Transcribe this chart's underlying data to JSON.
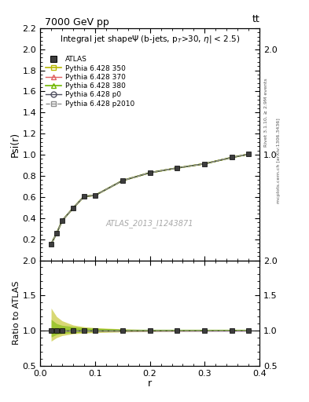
{
  "title_left": "7000 GeV pp",
  "title_right": "tt",
  "plot_title": "Integral jet shapeΨ (b-jets, p_{T}>30, |η| < 2.5)",
  "watermark": "ATLAS_2013_I1243871",
  "right_label_top": "Rivet 3.1.10, ≥ 2.9M events",
  "right_label_bot": "mcplots.cern.ch [arXiv:1306.3436]",
  "r_values": [
    0.02,
    0.03,
    0.04,
    0.06,
    0.08,
    0.1,
    0.15,
    0.2,
    0.25,
    0.3,
    0.35,
    0.38
  ],
  "atlas_psi": [
    0.155,
    0.255,
    0.375,
    0.495,
    0.605,
    0.615,
    0.755,
    0.83,
    0.875,
    0.915,
    0.975,
    1.005
  ],
  "py350_psi": [
    0.155,
    0.255,
    0.375,
    0.495,
    0.605,
    0.615,
    0.755,
    0.83,
    0.875,
    0.915,
    0.975,
    1.005
  ],
  "py370_psi": [
    0.155,
    0.255,
    0.375,
    0.495,
    0.605,
    0.615,
    0.755,
    0.83,
    0.875,
    0.915,
    0.975,
    1.005
  ],
  "py380_psi": [
    0.155,
    0.255,
    0.375,
    0.495,
    0.605,
    0.615,
    0.755,
    0.83,
    0.875,
    0.915,
    0.975,
    1.005
  ],
  "py_p0_psi": [
    0.155,
    0.255,
    0.375,
    0.495,
    0.605,
    0.615,
    0.755,
    0.83,
    0.875,
    0.915,
    0.975,
    1.005
  ],
  "py_p2010_psi": [
    0.155,
    0.255,
    0.375,
    0.495,
    0.605,
    0.615,
    0.755,
    0.83,
    0.875,
    0.915,
    0.975,
    1.005
  ],
  "ratio_all": [
    1.0,
    1.0,
    1.0,
    1.0,
    1.0,
    1.0,
    1.0,
    1.0,
    1.0,
    1.0,
    1.0,
    1.0
  ],
  "band_350_lo": [
    0.85,
    0.9,
    0.93,
    0.955,
    0.965,
    0.972,
    0.982,
    0.988,
    0.991,
    0.993,
    0.997,
    0.998
  ],
  "band_350_hi": [
    1.32,
    1.2,
    1.14,
    1.08,
    1.055,
    1.042,
    1.025,
    1.015,
    1.012,
    1.008,
    1.004,
    1.003
  ],
  "band_380_lo": [
    0.91,
    0.945,
    0.96,
    0.97,
    0.978,
    0.983,
    0.99,
    0.993,
    0.994,
    0.996,
    0.998,
    0.999
  ],
  "band_380_hi": [
    1.16,
    1.1,
    1.075,
    1.058,
    1.042,
    1.035,
    1.02,
    1.012,
    1.01,
    1.007,
    1.003,
    1.002
  ],
  "color_atlas": "#3d3d3d",
  "color_350": "#b8b800",
  "color_370": "#e06060",
  "color_380": "#70b800",
  "color_p0": "#505060",
  "color_p2010": "#909090",
  "ylim_main": [
    0.0,
    2.2
  ],
  "yticks_main": [
    0.2,
    0.4,
    0.6,
    0.8,
    1.0,
    1.2,
    1.4,
    1.6,
    1.8,
    2.0,
    2.2
  ],
  "ylim_ratio": [
    0.5,
    2.0
  ],
  "yticks_ratio": [
    0.5,
    1.0,
    1.5,
    2.0
  ],
  "xlim": [
    0.0,
    0.4
  ],
  "xticks": [
    0.0,
    0.1,
    0.2,
    0.3,
    0.4
  ]
}
